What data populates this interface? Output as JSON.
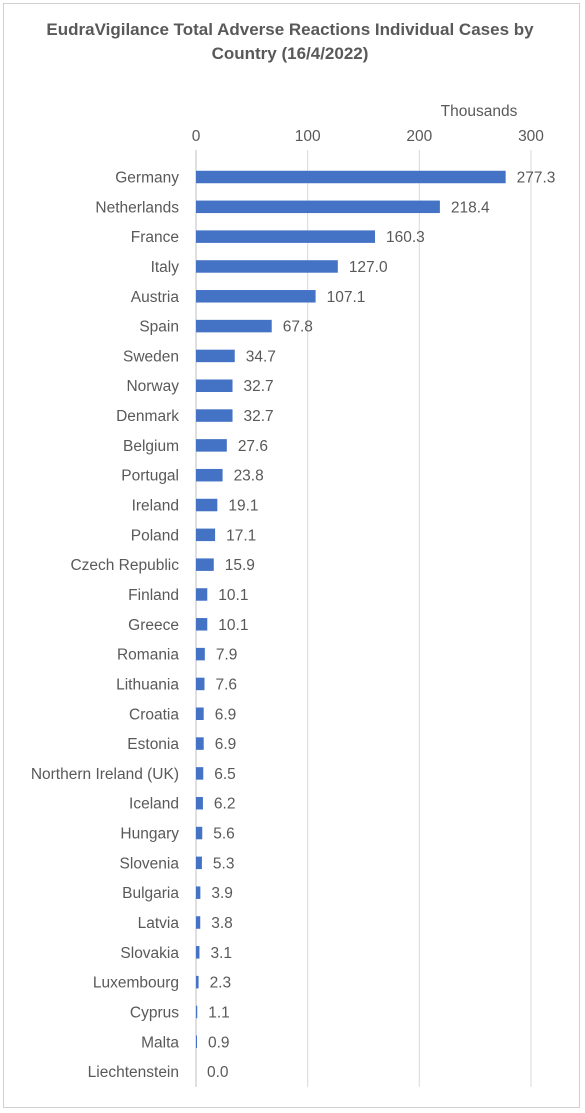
{
  "chart_data": {
    "type": "bar",
    "orientation": "horizontal",
    "title": "EudraVigilance Total Adverse Reactions Individual Cases by Country (16/4/2022)",
    "axis_units_label": "Thousands",
    "axis_position": "top",
    "xlim": [
      0,
      300
    ],
    "xticks": [
      "0",
      "100",
      "200",
      "300"
    ],
    "grid": true,
    "bar_color": "#4472c4",
    "categories": [
      "Germany",
      "Netherlands",
      "France",
      "Italy",
      "Austria",
      "Spain",
      "Sweden",
      "Norway",
      "Denmark",
      "Belgium",
      "Portugal",
      "Ireland",
      "Poland",
      "Czech Republic",
      "Finland",
      "Greece",
      "Romania",
      "Lithuania",
      "Croatia",
      "Estonia",
      "Northern Ireland (UK)",
      "Iceland",
      "Hungary",
      "Slovenia",
      "Bulgaria",
      "Latvia",
      "Slovakia",
      "Luxembourg",
      "Cyprus",
      "Malta",
      "Liechtenstein"
    ],
    "values": [
      277.3,
      218.4,
      160.3,
      127.0,
      107.1,
      67.8,
      34.7,
      32.7,
      32.7,
      27.6,
      23.8,
      19.1,
      17.1,
      15.9,
      10.1,
      10.1,
      7.9,
      7.6,
      6.9,
      6.9,
      6.5,
      6.2,
      5.6,
      5.3,
      3.9,
      3.8,
      3.1,
      2.3,
      1.1,
      0.9,
      0.0
    ],
    "data_labels": [
      "277.3",
      "218.4",
      "160.3",
      "127.0",
      "107.1",
      "67.8",
      "34.7",
      "32.7",
      "32.7",
      "27.6",
      "23.8",
      "19.1",
      "17.1",
      "15.9",
      "10.1",
      "10.1",
      "7.9",
      "7.6",
      "6.9",
      "6.9",
      "6.5",
      "6.2",
      "5.6",
      "5.3",
      "3.9",
      "3.8",
      "3.1",
      "2.3",
      "1.1",
      "0.9",
      "0.0"
    ]
  }
}
